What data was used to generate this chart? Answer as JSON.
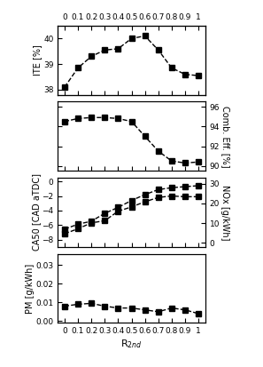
{
  "x": [
    0,
    0.1,
    0.2,
    0.3,
    0.4,
    0.5,
    0.6,
    0.7,
    0.8,
    0.9,
    1.0
  ],
  "ITE": [
    38.1,
    38.85,
    39.3,
    39.55,
    39.6,
    40.0,
    40.1,
    39.55,
    38.85,
    38.6,
    38.55
  ],
  "CombEff": [
    94.5,
    94.8,
    94.9,
    94.9,
    94.8,
    94.5,
    93.0,
    91.5,
    90.5,
    90.3,
    90.4
  ],
  "CA50": [
    -7.2,
    -6.5,
    -5.7,
    -5.4,
    -4.1,
    -3.5,
    -2.8,
    -2.2,
    -2.0,
    -2.1,
    -2.1
  ],
  "NOx": [
    7.0,
    9.5,
    11.0,
    15.0,
    18.0,
    21.5,
    24.5,
    27.0,
    28.0,
    28.5,
    29.0
  ],
  "PM": [
    0.008,
    0.009,
    0.0095,
    0.008,
    0.007,
    0.007,
    0.006,
    0.005,
    0.007,
    0.006,
    0.004
  ],
  "ITE_ylim": [
    37.8,
    40.5
  ],
  "ITE_yticks": [
    38,
    39,
    40
  ],
  "CombEff_ylim": [
    89.5,
    96.5
  ],
  "CombEff_yticks": [
    90,
    92,
    94,
    96
  ],
  "CA50_ylim": [
    -9.0,
    0.5
  ],
  "CA50_yticks": [
    -8,
    -6,
    -4,
    -2,
    0
  ],
  "NOx_ylim": [
    -2,
    33
  ],
  "NOx_yticks": [
    0,
    10,
    20,
    30
  ],
  "PM_ylim": [
    -0.001,
    0.036
  ],
  "PM_yticks": [
    0.0,
    0.01,
    0.02,
    0.03
  ],
  "xlim": [
    -0.05,
    1.05
  ],
  "xticks": [
    0,
    0.1,
    0.2,
    0.3,
    0.4,
    0.5,
    0.6,
    0.7,
    0.8,
    0.9,
    1.0
  ],
  "xtick_labels": [
    "0",
    "0.1",
    "0.2",
    "0.3",
    "0.4",
    "0.5",
    "0.6",
    "0.7",
    "0.8",
    "0.9",
    "1"
  ],
  "xlabel": "R$_{2nd}$",
  "ylabel_ITE": "ITE [%]",
  "ylabel_CombEff": "Comb. Eff. [%]",
  "ylabel_CA50": "CA50 [CAD aTDC]",
  "ylabel_NOx": "NOx [g/kWh]",
  "ylabel_PM": "PM [g/kWh]",
  "markersize": 4,
  "linewidth": 1.0,
  "color": "black",
  "linestyle": "--"
}
